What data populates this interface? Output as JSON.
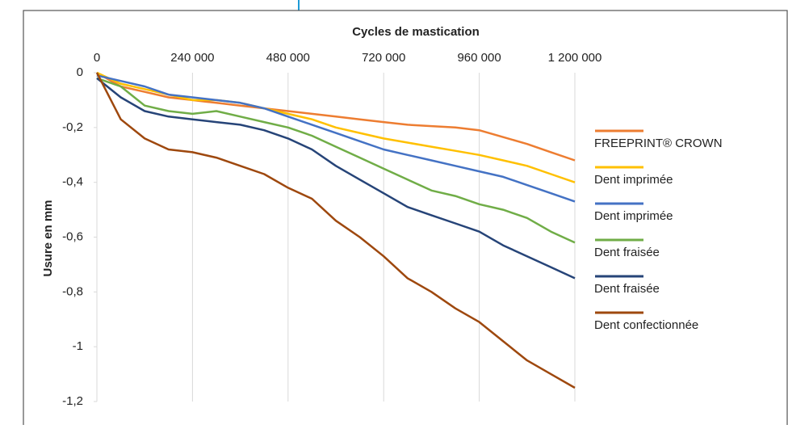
{
  "chart_data": {
    "type": "line",
    "title": "Cycles de mastication",
    "y_label": "Usure en mm",
    "x": [
      0,
      60000,
      120000,
      180000,
      240000,
      300000,
      360000,
      420000,
      480000,
      540000,
      600000,
      660000,
      720000,
      780000,
      840000,
      900000,
      960000,
      1020000,
      1080000,
      1140000,
      1200000
    ],
    "xlim": [
      0,
      1200000
    ],
    "xticks": [
      0,
      {
        "value": 240000,
        "label": "240 000"
      },
      {
        "value": 480000,
        "label": "480 000"
      },
      {
        "value": 720000,
        "label": "720 000"
      },
      {
        "value": 960000,
        "label": "960 000"
      },
      {
        "value": 1200000,
        "label": "1 200 000"
      }
    ],
    "ylim": [
      0,
      -1.2
    ],
    "yticks": [
      0,
      {
        "value": -0.2,
        "label": "-0,2"
      },
      {
        "value": -0.4,
        "label": "-0,4"
      },
      {
        "value": -0.6,
        "label": "-0,6"
      },
      {
        "value": -0.8,
        "label": "-0,8"
      },
      -1,
      {
        "value": -1.2,
        "label": "-1,2"
      }
    ],
    "grid": "x",
    "legend": "right",
    "series": [
      {
        "name": "FREEPRINT® CROWN",
        "color": "#ed7d31",
        "values": [
          0,
          -0.05,
          -0.07,
          -0.09,
          -0.1,
          -0.11,
          -0.12,
          -0.13,
          -0.14,
          -0.15,
          -0.16,
          -0.17,
          -0.18,
          -0.19,
          -0.195,
          -0.2,
          -0.21,
          -0.235,
          -0.26,
          -0.29,
          -0.32
        ]
      },
      {
        "name": "Dent imprimée",
        "color": "#ffc000",
        "values": [
          0,
          -0.04,
          -0.06,
          -0.08,
          -0.1,
          -0.1,
          -0.11,
          -0.13,
          -0.15,
          -0.17,
          -0.2,
          -0.22,
          -0.24,
          -0.255,
          -0.27,
          -0.285,
          -0.3,
          -0.32,
          -0.34,
          -0.37,
          -0.4
        ]
      },
      {
        "name": "Dent imprimée",
        "color": "#4472c4",
        "values": [
          -0.01,
          -0.03,
          -0.05,
          -0.08,
          -0.09,
          -0.1,
          -0.11,
          -0.13,
          -0.16,
          -0.19,
          -0.22,
          -0.25,
          -0.28,
          -0.3,
          -0.32,
          -0.34,
          -0.36,
          -0.38,
          -0.41,
          -0.44,
          -0.47
        ]
      },
      {
        "name": "Dent fraisée",
        "color": "#70ad47",
        "values": [
          -0.02,
          -0.05,
          -0.12,
          -0.14,
          -0.15,
          -0.14,
          -0.16,
          -0.18,
          -0.2,
          -0.23,
          -0.27,
          -0.31,
          -0.35,
          -0.39,
          -0.43,
          -0.45,
          -0.48,
          -0.5,
          -0.53,
          -0.58,
          -0.62
        ]
      },
      {
        "name": "Dent fraisée",
        "color": "#264478",
        "values": [
          -0.02,
          -0.09,
          -0.14,
          -0.16,
          -0.17,
          -0.18,
          -0.19,
          -0.21,
          -0.24,
          -0.28,
          -0.34,
          -0.39,
          -0.44,
          -0.49,
          -0.52,
          -0.55,
          -0.58,
          -0.63,
          -0.67,
          -0.71,
          -0.75
        ]
      },
      {
        "name": "Dent confectionnée",
        "color": "#9e480e",
        "values": [
          0,
          -0.17,
          -0.24,
          -0.28,
          -0.29,
          -0.31,
          -0.34,
          -0.37,
          -0.42,
          -0.46,
          -0.54,
          -0.6,
          -0.67,
          -0.75,
          -0.8,
          -0.86,
          -0.91,
          -0.98,
          -1.05,
          -1.1,
          -1.15
        ]
      }
    ]
  }
}
